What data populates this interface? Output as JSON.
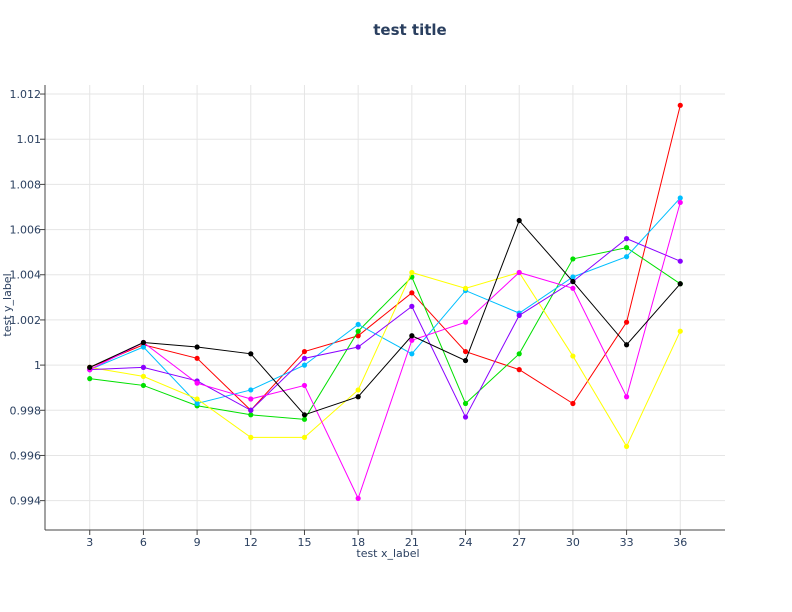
{
  "chart_data": {
    "type": "line",
    "title": "test title",
    "xlabel": "test x_label",
    "ylabel": "test y_label",
    "x": [
      3,
      6,
      9,
      12,
      15,
      18,
      21,
      24,
      27,
      30,
      33,
      36
    ],
    "xlim": [
      0.5,
      38.5
    ],
    "ylim": [
      0.9927,
      1.0124
    ],
    "yticks": [
      0.994,
      0.996,
      0.998,
      1,
      1.002,
      1.004,
      1.006,
      1.008,
      1.01,
      1.012
    ],
    "ytick_labels": [
      "0.994",
      "0.996",
      "0.998",
      "1",
      "1.002",
      "1.004",
      "1.006",
      "1.008",
      "1.01",
      "1.012"
    ],
    "xtick_labels": [
      "3",
      "6",
      "9",
      "12",
      "15",
      "18",
      "21",
      "24",
      "27",
      "30",
      "33",
      "36"
    ],
    "grid": true,
    "series": [
      {
        "color": "#ff0000",
        "values": [
          0.9999,
          1.0009,
          1.0003,
          0.998,
          1.0006,
          1.0013,
          1.0032,
          1.0006,
          0.9998,
          0.9983,
          1.0019,
          1.0115
        ]
      },
      {
        "color": "#00e000",
        "values": [
          0.9994,
          0.9991,
          0.9982,
          0.9978,
          0.9976,
          1.0015,
          1.0039,
          0.9983,
          1.0005,
          1.0047,
          1.0052,
          1.0036
        ]
      },
      {
        "color": "#00bfff",
        "values": [
          0.9998,
          1.0008,
          0.9983,
          0.9989,
          1.0,
          1.0018,
          1.0005,
          1.0033,
          1.0023,
          1.0039,
          1.0048,
          1.0074
        ]
      },
      {
        "color": "#ffff00",
        "values": [
          0.9999,
          0.9995,
          0.9985,
          0.9968,
          0.9968,
          0.9989,
          1.0041,
          1.0034,
          1.0041,
          1.0004,
          0.9964,
          1.0015
        ]
      },
      {
        "color": "#8a00ff",
        "values": [
          0.9998,
          0.9999,
          0.9993,
          0.998,
          1.0003,
          1.0008,
          1.0026,
          0.9977,
          1.0022,
          1.0037,
          1.0056,
          1.0046
        ]
      },
      {
        "color": "#ff00ff",
        "values": [
          0.9998,
          1.001,
          0.9992,
          0.9985,
          0.9991,
          0.9941,
          1.0011,
          1.0019,
          1.0041,
          1.0034,
          0.9986,
          1.0072
        ]
      },
      {
        "color": "#000000",
        "values": [
          0.9999,
          1.001,
          1.0008,
          1.0005,
          0.9978,
          0.9986,
          1.0013,
          1.0002,
          1.0064,
          1.0037,
          1.0009,
          1.0036
        ]
      }
    ]
  }
}
